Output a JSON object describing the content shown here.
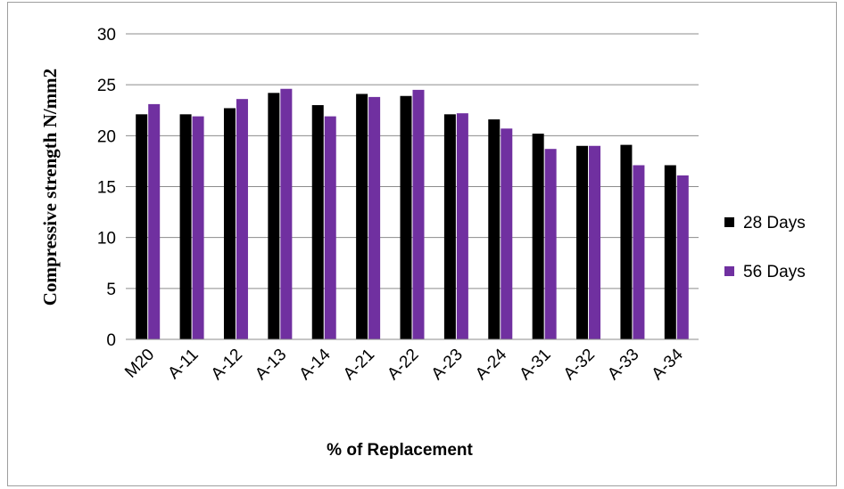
{
  "chart_data": {
    "type": "bar",
    "title": "",
    "xlabel": "% of Replacement",
    "ylabel": "Compressive strength N/mm2",
    "categories": [
      "M20",
      "A-11",
      "A-12",
      "A-13",
      "A-14",
      "A-21",
      "A-22",
      "A-23",
      "A-24",
      "A-31",
      "A-32",
      "A-33",
      "A-34"
    ],
    "series": [
      {
        "name": "28 Days",
        "color": "#000000",
        "values": [
          22.1,
          22.1,
          22.7,
          24.2,
          23.0,
          24.1,
          23.9,
          22.1,
          21.6,
          20.2,
          19.0,
          19.1,
          17.1
        ]
      },
      {
        "name": "56 Days",
        "color": "#7030a0",
        "values": [
          23.1,
          21.9,
          23.6,
          24.6,
          21.9,
          23.8,
          24.5,
          22.2,
          20.7,
          18.7,
          19.0,
          17.1,
          16.1
        ]
      }
    ],
    "ylim": [
      0,
      30
    ],
    "yticks": [
      0,
      5,
      10,
      15,
      20,
      25,
      30
    ],
    "grid": true,
    "legend_position": "right"
  }
}
